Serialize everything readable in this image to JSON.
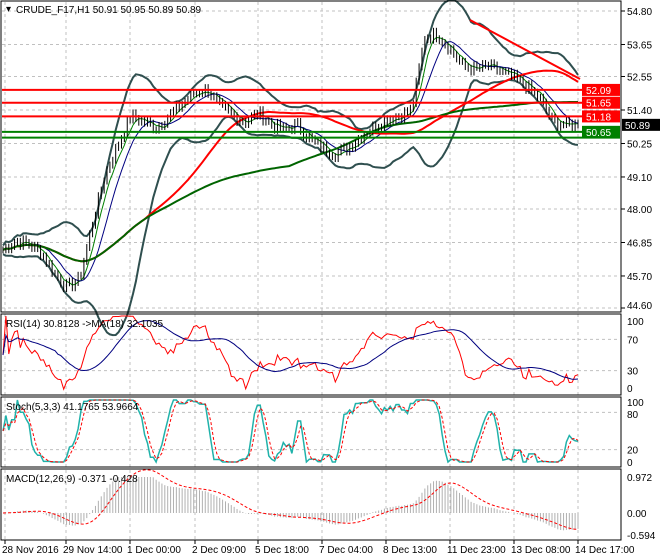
{
  "main": {
    "title": "CRUDE_F17,H1  50.91 50.95 50.89 50.89",
    "price_ticks": [
      "54.80",
      "53.65",
      "52.55",
      "51.40",
      "50.25",
      "49.10",
      "48.00",
      "46.85",
      "45.70",
      "44.60"
    ],
    "levels": [
      {
        "value": 52.09,
        "label": "52.09",
        "color": "#ff0000"
      },
      {
        "value": 51.65,
        "label": "51.65",
        "color": "#ff0000"
      },
      {
        "value": 51.18,
        "label": "51.18",
        "color": "#ff0000"
      },
      {
        "value": 50.65,
        "label": "50.65",
        "color": "#008000"
      },
      {
        "value": 50.45,
        "label": "",
        "color": "#008000"
      }
    ],
    "current_price": "50.89",
    "current_price_value": 50.89,
    "range": [
      44.6,
      54.8
    ]
  },
  "rsi": {
    "title": "RSI(14) 30.8128  ->MA(18) 32.1035",
    "ticks": [
      "100",
      "70",
      "30",
      "0"
    ]
  },
  "stoch": {
    "title": "Stoch(5,3,3) 41.1765 53.9664",
    "ticks": [
      "100",
      "80",
      "20",
      "0"
    ]
  },
  "macd": {
    "title": "MACD(12,26,9) -0.371 -0.428",
    "ticks": [
      "0.972",
      "0.00",
      "-0.594"
    ]
  },
  "time_axis": [
    "28 Nov 2016",
    "29 Nov 14:00",
    "1 Dec 00:00",
    "2 Dec 09:00",
    "5 Dec 18:00",
    "7 Dec 04:00",
    "8 Dec 13:00",
    "11 Dec 23:00",
    "13 Dec 08:00",
    "14 Dec 17:00"
  ],
  "chart_data": {
    "type": "line",
    "series": [
      {
        "name": "close",
        "values": [
          46.6,
          46.9,
          46.8,
          46.5,
          45.8,
          45.3,
          45.6,
          47.5,
          49.2,
          50.2,
          51.2,
          51.0,
          50.8,
          51.2,
          51.6,
          52.0,
          52.1,
          51.5,
          51.2,
          51.0,
          51.3,
          50.9,
          50.7,
          50.9,
          50.4,
          50.1,
          49.9,
          50.1,
          50.5,
          50.8,
          51.1,
          51.2,
          51.4,
          53.9,
          54.0,
          53.5,
          52.9,
          52.8,
          52.9,
          52.7,
          52.5,
          52.2,
          51.8,
          51.0,
          50.9,
          50.89
        ]
      }
    ],
    "colors": {
      "ma_fast": "#ff0000",
      "ma_slow": "#006400",
      "bands": "#2f4f4f",
      "rsi": "#ff0000",
      "rsi_ma": "#000080",
      "stoch_main": "#20b2aa",
      "stoch_signal": "#ff0000"
    }
  }
}
